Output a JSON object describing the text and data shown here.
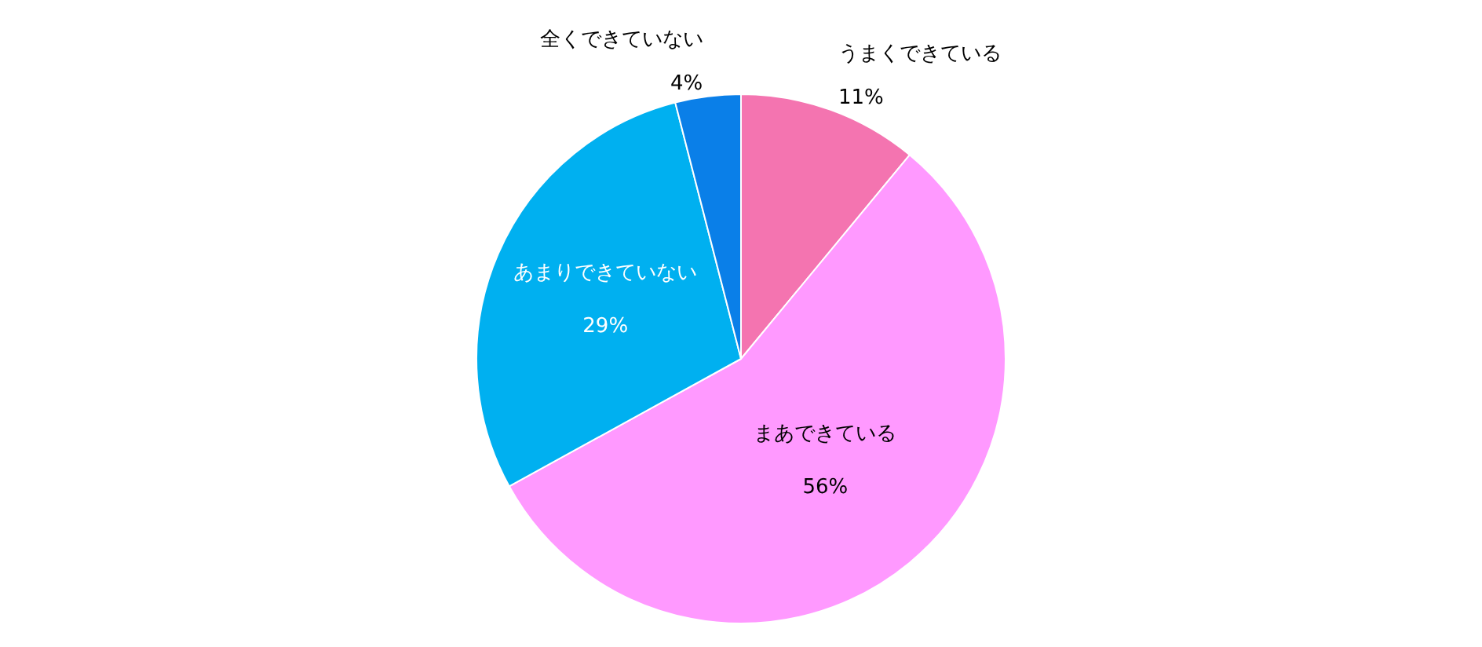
{
  "chart_data": {
    "type": "pie",
    "categories": [
      "うまくできている",
      "まあできている",
      "あまりできていない",
      "全くできていない"
    ],
    "values": [
      11,
      56,
      29,
      4
    ],
    "value_labels": [
      "11%",
      "56%",
      "29%",
      "4%"
    ],
    "colors": [
      "#f474b0",
      "#ff99ff",
      "#00b0f0",
      "#0a7fe8"
    ],
    "legend": false
  }
}
